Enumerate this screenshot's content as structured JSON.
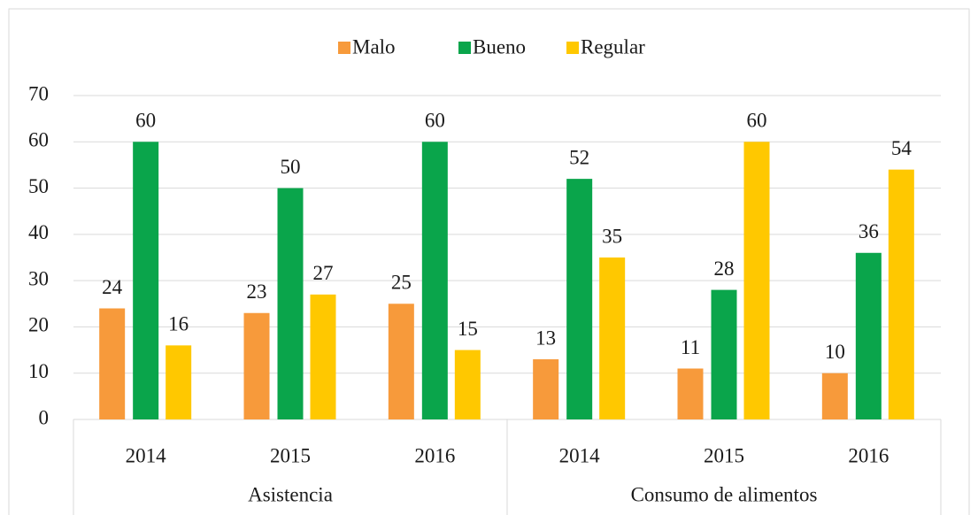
{
  "chart_data": {
    "type": "bar",
    "categories": [
      "2014",
      "2015",
      "2016",
      "2014",
      "2015",
      "2016"
    ],
    "groups": [
      "Asistencia",
      "Consumo de alimentos"
    ],
    "series": [
      {
        "name": "Malo",
        "color": "#f79a3b",
        "values": [
          24,
          23,
          25,
          13,
          11,
          10
        ]
      },
      {
        "name": "Bueno",
        "color": "#0aa54b",
        "values": [
          60,
          50,
          60,
          52,
          28,
          36
        ]
      },
      {
        "name": "Regular",
        "color": "#ffc800",
        "values": [
          16,
          27,
          15,
          35,
          60,
          54
        ]
      }
    ],
    "ylim": [
      0,
      70
    ],
    "yticks": [
      0,
      10,
      20,
      30,
      40,
      50,
      60,
      70
    ],
    "grid": true,
    "legend": "top"
  }
}
